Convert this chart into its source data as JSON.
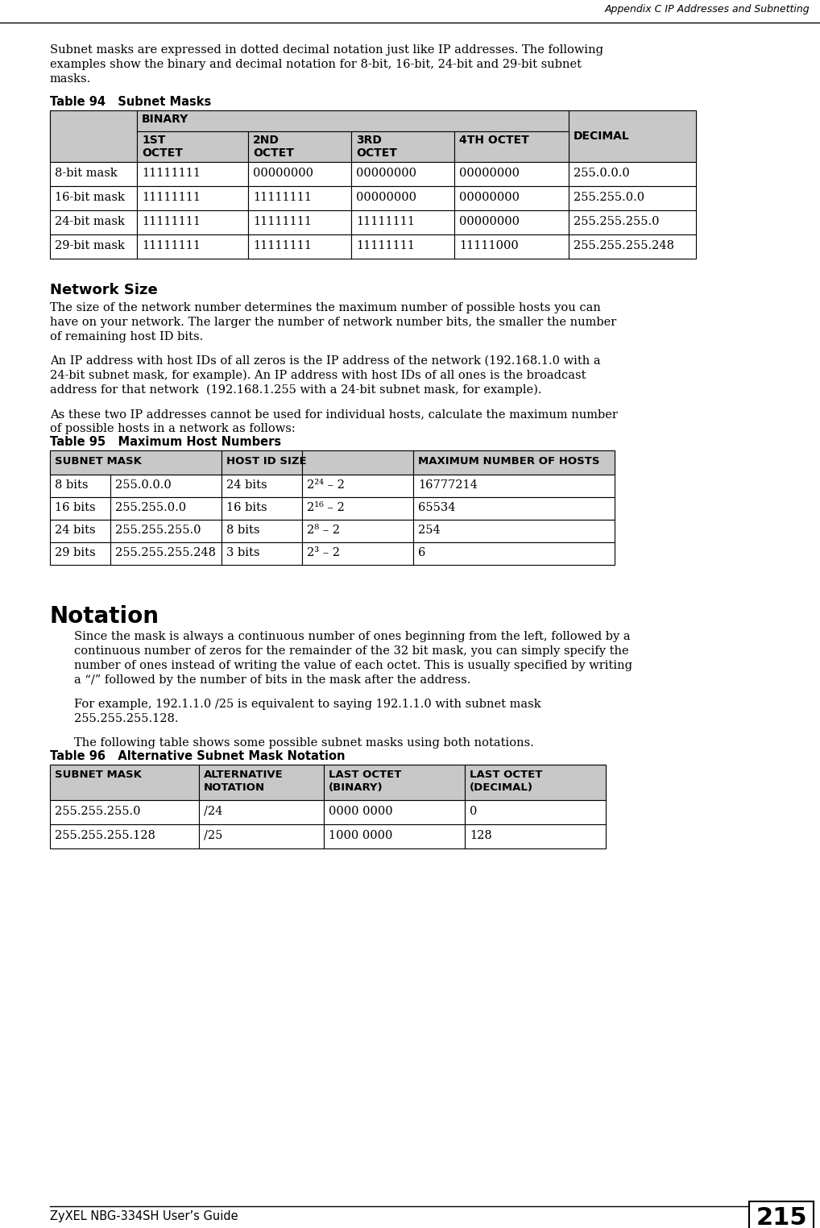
{
  "page_header": "Appendix C IP Addresses and Subnetting",
  "page_footer_left": "ZyXEL NBG-334SH User’s Guide",
  "page_number": "215",
  "intro_text_line1": "Subnet masks are expressed in dotted decimal notation just like IP addresses. The following",
  "intro_text_line2": "examples show the binary and decimal notation for 8-bit, 16-bit, 24-bit and 29-bit subnet",
  "intro_text_line3": "masks.",
  "table94_title": "Table 94   Subnet Masks",
  "table94_rows": [
    [
      "8-bit mask",
      "11111111",
      "00000000",
      "00000000",
      "00000000",
      "255.0.0.0"
    ],
    [
      "16-bit mask",
      "11111111",
      "11111111",
      "00000000",
      "00000000",
      "255.255.0.0"
    ],
    [
      "24-bit mask",
      "11111111",
      "11111111",
      "11111111",
      "00000000",
      "255.255.255.0"
    ],
    [
      "29-bit mask",
      "11111111",
      "11111111",
      "11111111",
      "11111000",
      "255.255.255.248"
    ]
  ],
  "section2_title": "Network Size",
  "section2_text1_l1": "The size of the network number determines the maximum number of possible hosts you can",
  "section2_text1_l2": "have on your network. The larger the number of network number bits, the smaller the number",
  "section2_text1_l3": "of remaining host ID bits.",
  "section2_text2_l1": "An IP address with host IDs of all zeros is the IP address of the network (192.168.1.0 with a",
  "section2_text2_l2": "24-bit subnet mask, for example). An IP address with host IDs of all ones is the broadcast",
  "section2_text2_l3": "address for that network  (192.168.1.255 with a 24-bit subnet mask, for example).",
  "section2_text3_l1": "As these two IP addresses cannot be used for individual hosts, calculate the maximum number",
  "section2_text3_l2": "of possible hosts in a network as follows:",
  "table95_title": "Table 95   Maximum Host Numbers",
  "table95_col_headers": [
    "SUBNET MASK",
    "HOST ID SIZE",
    "",
    "MAXIMUM NUMBER OF HOSTS"
  ],
  "table95_rows": [
    [
      "8 bits",
      "255.0.0.0",
      "24 bits",
      "16777214"
    ],
    [
      "16 bits",
      "255.255.0.0",
      "16 bits",
      "65534"
    ],
    [
      "24 bits",
      "255.255.255.0",
      "8 bits",
      "254"
    ],
    [
      "29 bits",
      "255.255.255.248",
      "3 bits",
      "6"
    ]
  ],
  "table95_exp": [
    "2²⁴ – 2",
    "2¹⁶ – 2",
    "2⁸ – 2",
    "2³ – 2"
  ],
  "section3_title": "Notation",
  "section3_text1_l1": "Since the mask is always a continuous number of ones beginning from the left, followed by a",
  "section3_text1_l2": "continuous number of zeros for the remainder of the 32 bit mask, you can simply specify the",
  "section3_text1_l3": "number of ones instead of writing the value of each octet. This is usually specified by writing",
  "section3_text1_l4": "a “/” followed by the number of bits in the mask after the address.",
  "section3_text2_l1": "For example, 192.1.1.0 /25 is equivalent to saying 192.1.1.0 with subnet mask",
  "section3_text2_l2": "255.255.255.128.",
  "section3_text3": "The following table shows some possible subnet masks using both notations.",
  "table96_title": "Table 96   Alternative Subnet Mask Notation",
  "table96_col_headers": [
    "SUBNET MASK",
    "ALTERNATIVE\nNOTATION",
    "LAST OCTET\n(BINARY)",
    "LAST OCTET\n(DECIMAL)"
  ],
  "table96_rows": [
    [
      "255.255.255.0",
      "/24",
      "0000 0000",
      "0"
    ],
    [
      "255.255.255.128",
      "/25",
      "1000 0000",
      "128"
    ]
  ],
  "header_bg": "#c8c8c8",
  "bg_color": "#ffffff"
}
